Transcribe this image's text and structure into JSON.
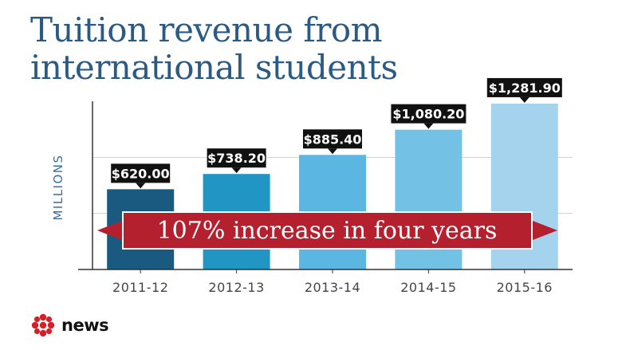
{
  "title_line1": "Tuition revenue from",
  "title_line2": "international students",
  "banner_text": "107% increase in four years",
  "brand": "news",
  "colors": {
    "title": "#2b5a83",
    "bars": [
      "#1a5a80",
      "#2196c4",
      "#5cb6e2",
      "#74c1e6",
      "#a5d3ee"
    ],
    "label_bg": "#111111",
    "banner": "#b5202e",
    "axis": "#333333",
    "grid": "#d0d0d0",
    "tick_text": "#444444",
    "ylabel": "#3a6f98",
    "logo": "#d61f26"
  },
  "chart_data": {
    "type": "bar",
    "title": "Tuition revenue from international students",
    "ylabel": "MILLIONS",
    "xlabel": "",
    "categories": [
      "2011-12",
      "2012-13",
      "2013-14",
      "2014-15",
      "2015-16"
    ],
    "values": [
      620.0,
      738.2,
      885.4,
      1080.2,
      1281.9
    ],
    "data_labels": [
      "$620.00",
      "$738.20",
      "$885.40",
      "$1,080.20",
      "$1,281.90"
    ],
    "ylim": [
      0,
      1300
    ],
    "grid": true,
    "legend": "none",
    "annotation": "107% increase in four years"
  }
}
